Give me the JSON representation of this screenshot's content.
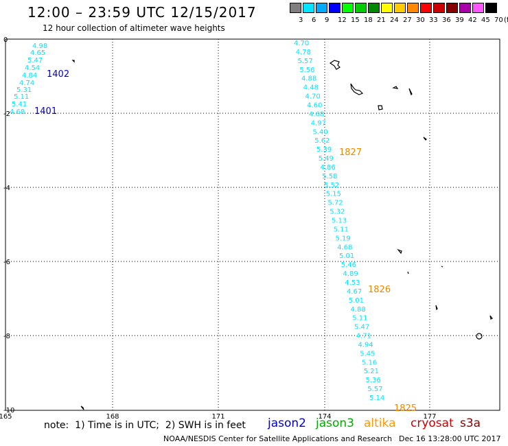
{
  "header": {
    "title": "12:00 – 23:59 UTC 12/15/2017",
    "subtitle": "12 hour collection of altimeter wave heights"
  },
  "colorbar": {
    "boxes": [
      "#7f7f7f",
      "#00e5ff",
      "#00aaff",
      "#0000ff",
      "#00ff00",
      "#00cc00",
      "#008800",
      "#ffff00",
      "#ffcc00",
      "#ff8800",
      "#ff0000",
      "#cc0000",
      "#880000",
      "#aa00aa",
      "#ff55ff",
      "#000000"
    ],
    "labels": [
      "3",
      "6",
      "9",
      "12",
      "15",
      "18",
      "21",
      "24",
      "27",
      "30",
      "33",
      "36",
      "39",
      "42",
      "45",
      "70"
    ],
    "unit": "(ft)"
  },
  "map": {
    "y_ticks": [
      "0",
      "-2",
      "-4",
      "-6",
      "-8",
      "-10"
    ],
    "x_ticks": [
      "165",
      "168",
      "171",
      "174",
      "177"
    ],
    "tracks": [
      {
        "satellite": "jason2",
        "label": "1402",
        "color": "#0000cc",
        "label_color": "#0000cc",
        "values": [
          "4.98",
          "4.65",
          "5.47",
          "4.54",
          "4.84",
          "4.74",
          "5.31",
          "5.11",
          "5.41",
          "4.68"
        ]
      },
      {
        "satellite": "jason2",
        "label": "1401",
        "color": "#0000cc",
        "label_color": "#0000cc",
        "values": []
      },
      {
        "satellite": "altika",
        "label": "1827",
        "color": "#00e5ff",
        "label_color": "#ee8800",
        "values": [
          "4.70",
          "4.78",
          "5.57",
          "5.56",
          "4.88",
          "4.48",
          "4.70",
          "4.60",
          "4.68",
          "4.97",
          "5.40",
          "5.62",
          "5.39",
          "5.49",
          "4.86",
          "5.58",
          "5.52",
          "5.15",
          "5.72",
          "5.32",
          "5.13",
          "5.11",
          "5.19",
          "4.68",
          "5.01",
          "5.46",
          "4.89",
          "4.53",
          "4.67",
          "5.01",
          "4.88",
          "5.11",
          "5.47",
          "4.71",
          "4.94",
          "5.45",
          "5.16",
          "5.21",
          "5.36",
          "5.57",
          "5.14"
        ]
      },
      {
        "satellite": "altika",
        "label": "1826",
        "color": "#00e5ff",
        "label_color": "#ee8800",
        "values": []
      },
      {
        "satellite": "altika",
        "label": "1825",
        "color": "#00e5ff",
        "label_color": "#ee8800",
        "values": []
      }
    ]
  },
  "footer": {
    "note": "note:  1) Time is in UTC;  2) SWH is in feet",
    "legend": [
      {
        "name": "jason2",
        "color": "#0000cc"
      },
      {
        "name": "jason3",
        "color": "#00aa00"
      },
      {
        "name": "altika",
        "color": "#ff9900"
      },
      {
        "name": "cryosat",
        "color": "#cc0000"
      },
      {
        "name": "s3a",
        "color": "#880000"
      }
    ],
    "credit": "NOAA/NESDIS Center for Satellite Applications and Research",
    "timestamp": "Dec 16 13:28:00 UTC 2017"
  }
}
